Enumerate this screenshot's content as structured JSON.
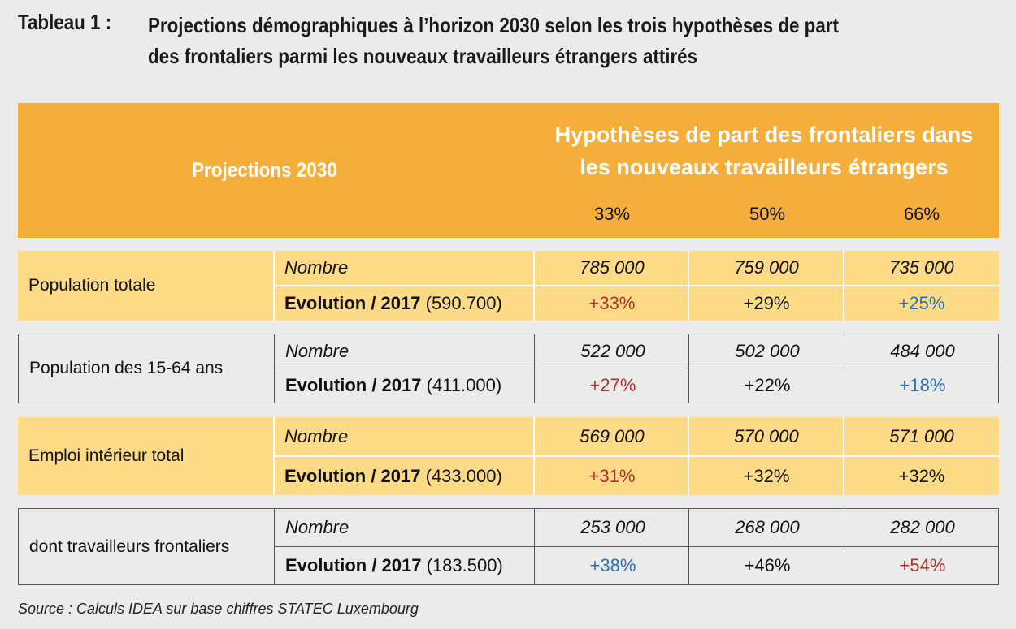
{
  "title": {
    "label": "Tableau 1 :",
    "text_line1": "Projections démographiques à l’horizon 2030 selon les trois hypothèses de part",
    "text_line2": "des frontaliers parmi les nouveaux travailleurs étrangers attirés"
  },
  "header": {
    "projections_label": "Projections 2030",
    "hypotheses_line1": "Hypothèses de part des frontaliers dans",
    "hypotheses_line2": "les nouveaux travailleurs étrangers",
    "percentages": [
      "33%",
      "50%",
      "66%"
    ]
  },
  "rows": [
    {
      "label": "Population totale",
      "nombre_label": "Nombre",
      "evolution_label": "Evolution / 2017",
      "evolution_base": "(590.700)",
      "nombre": [
        "785 000",
        "759 000",
        "735 000"
      ],
      "evolution": [
        "+33%",
        "+29%",
        "+25%"
      ],
      "evolution_colors": [
        "red",
        "black",
        "blue"
      ]
    },
    {
      "label": "Population des 15-64 ans",
      "nombre_label": "Nombre",
      "evolution_label": "Evolution / 2017",
      "evolution_base": "(411.000)",
      "nombre": [
        "522 000",
        "502 000",
        "484 000"
      ],
      "evolution": [
        "+27%",
        "+22%",
        "+18%"
      ],
      "evolution_colors": [
        "red",
        "black",
        "blue"
      ]
    },
    {
      "label": "Emploi intérieur total",
      "nombre_label": "Nombre",
      "evolution_label": "Evolution / 2017",
      "evolution_base": "(433.000)",
      "nombre": [
        "569 000",
        "570 000",
        "571 000"
      ],
      "evolution": [
        "+31%",
        "+32%",
        "+32%"
      ],
      "evolution_colors": [
        "red",
        "black",
        "black"
      ]
    },
    {
      "label": "dont travailleurs frontaliers",
      "nombre_label": "Nombre",
      "evolution_label": "Evolution / 2017",
      "evolution_base": "(183.500)",
      "nombre": [
        "253 000",
        "268 000",
        "282 000"
      ],
      "evolution": [
        "+38%",
        "+46%",
        "+54%"
      ],
      "evolution_colors": [
        "blue",
        "black",
        "red"
      ]
    }
  ],
  "colors": {
    "header_band": "#f6ae3a",
    "row_yellow": "#fddb86",
    "positive_red": "#b03028",
    "positive_blue": "#2a6fb4"
  },
  "source": "Source : Calculs IDEA sur base chiffres STATEC Luxembourg"
}
